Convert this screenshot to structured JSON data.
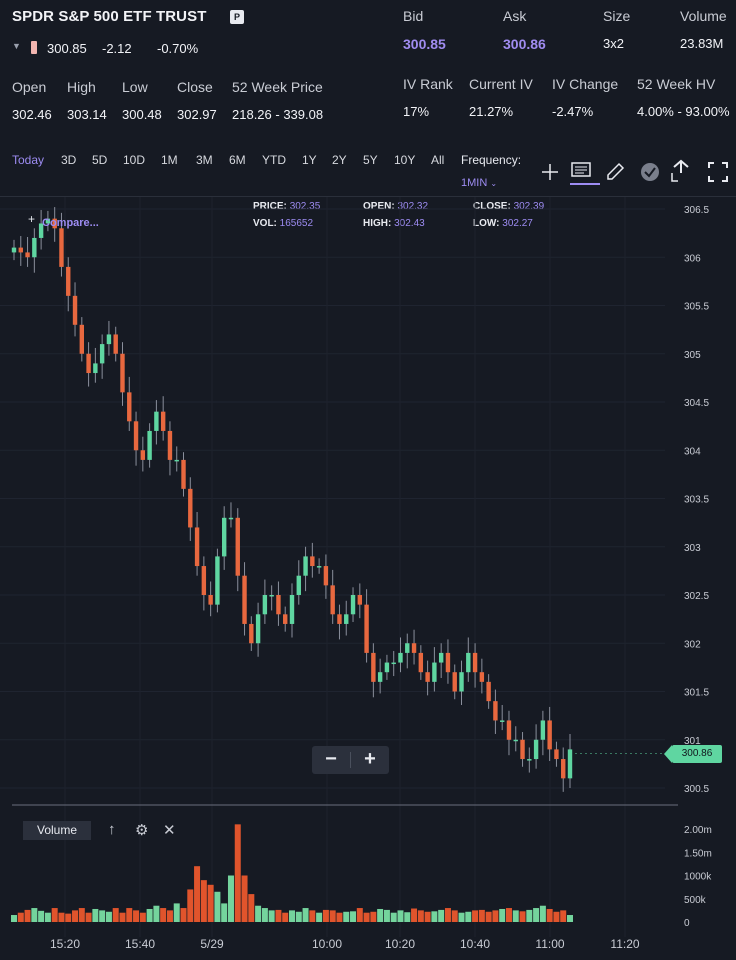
{
  "header": {
    "title": "SPDR S&P 500 ETF TRUST",
    "badge": "P",
    "last": "300.85",
    "change": "-2.12",
    "change_pct": "-0.70%"
  },
  "quote": {
    "labels": {
      "bid": "Bid",
      "ask": "Ask",
      "size": "Size",
      "volume": "Volume"
    },
    "bid": "300.85",
    "ask": "300.86",
    "size": "3x2",
    "volume": "23.83M"
  },
  "stats": {
    "labels": {
      "open": "Open",
      "high": "High",
      "low": "Low",
      "close": "Close",
      "week52": "52 Week Price"
    },
    "open": "302.46",
    "high": "303.14",
    "low": "300.48",
    "close": "302.97",
    "week52": "218.26 - 339.08"
  },
  "iv": {
    "labels": {
      "rank": "IV Rank",
      "current": "Current IV",
      "change": "IV Change",
      "hv": "52 Week HV"
    },
    "rank": "17%",
    "current": "21.27%",
    "change": "-2.47%",
    "hv": "4.00% - 93.00%"
  },
  "toolbar": {
    "ranges": [
      "Today",
      "3D",
      "5D",
      "10D",
      "1M",
      "3M",
      "6M",
      "YTD",
      "1Y",
      "2Y",
      "5Y",
      "10Y",
      "All"
    ],
    "active_range": "Today",
    "frequency_label": "Frequency:",
    "frequency_value": "1MIN"
  },
  "chart_info": {
    "price_label": "PRICE:",
    "price": "302.35",
    "open_label": "OPEN:",
    "open": "302.32",
    "close_label": "CLOSE:",
    "close": "302.39",
    "vol_label": "VOL:",
    "vol": "165652",
    "high_label": "HIGH:",
    "high": "302.43",
    "low_label": "LOW:",
    "low": "302.27"
  },
  "compare_label": "Compare...",
  "volume_label": "Volume",
  "current_price_tag": "300.86",
  "colors": {
    "up": "#5fd6a1",
    "down": "#e8683f",
    "accent": "#9d8cf2",
    "bg": "#161a23"
  },
  "chart_data": {
    "type": "candlestick",
    "price_axis": {
      "ticks": [
        "306.5",
        "306",
        "305.5",
        "305",
        "304.5",
        "304",
        "303.5",
        "303",
        "302.5",
        "302",
        "301.5",
        "301",
        "300.5"
      ],
      "ylim": [
        300.5,
        306.5
      ]
    },
    "volume_axis": {
      "ticks": [
        "2.00m",
        "1.50m",
        "1000k",
        "500k",
        "0"
      ],
      "ylim": [
        0,
        2000000
      ]
    },
    "time_axis": {
      "ticks": [
        "15:20",
        "15:40",
        "5/29",
        "10:00",
        "10:20",
        "10:40",
        "11:00",
        "11:20"
      ]
    },
    "close_series": [
      306.1,
      306.05,
      306.0,
      306.2,
      306.35,
      306.4,
      306.3,
      305.9,
      305.6,
      305.3,
      305.0,
      304.8,
      304.9,
      305.1,
      305.2,
      305.0,
      304.6,
      304.3,
      304.0,
      303.9,
      304.2,
      304.4,
      304.2,
      303.9,
      303.9,
      303.6,
      303.2,
      302.8,
      302.5,
      302.4,
      302.9,
      303.3,
      303.3,
      302.7,
      302.2,
      302.0,
      302.3,
      302.5,
      302.5,
      302.3,
      302.2,
      302.5,
      302.7,
      302.9,
      302.8,
      302.8,
      302.6,
      302.3,
      302.2,
      302.3,
      302.5,
      302.4,
      301.9,
      301.6,
      301.7,
      301.8,
      301.8,
      301.9,
      302.0,
      301.9,
      301.7,
      301.6,
      301.8,
      301.9,
      301.7,
      301.5,
      301.7,
      301.9,
      301.7,
      301.6,
      301.4,
      301.2,
      301.2,
      301.0,
      301.0,
      300.8,
      300.8,
      301.0,
      301.2,
      300.9,
      300.8,
      300.6,
      300.9
    ],
    "volume_series": [
      150000,
      200000,
      260000,
      300000,
      240000,
      200000,
      300000,
      200000,
      180000,
      250000,
      300000,
      200000,
      280000,
      250000,
      220000,
      300000,
      200000,
      300000,
      250000,
      200000,
      280000,
      350000,
      300000,
      250000,
      400000,
      300000,
      700000,
      1200000,
      900000,
      800000,
      650000,
      400000,
      1000000,
      2100000,
      1000000,
      600000,
      350000,
      300000,
      250000,
      260000,
      200000,
      250000,
      220000,
      300000,
      250000,
      200000,
      260000,
      250000,
      200000,
      220000,
      230000,
      300000,
      200000,
      220000,
      280000,
      260000,
      200000,
      250000,
      210000,
      290000,
      250000,
      220000,
      230000,
      260000,
      300000,
      250000,
      200000,
      220000,
      250000,
      260000,
      220000,
      250000,
      280000,
      300000,
      250000,
      230000,
      260000,
      300000,
      350000,
      280000,
      220000,
      250000,
      150000
    ]
  }
}
